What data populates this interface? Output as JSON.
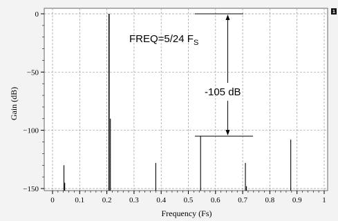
{
  "badge": "1",
  "chart_data": {
    "type": "bar",
    "xlabel": "Frequency (Fs)",
    "ylabel": "Gain (dB)",
    "xlim": [
      0,
      1
    ],
    "ylim": [
      -150,
      0
    ],
    "xticks": [
      0,
      0.1,
      0.2,
      0.3,
      0.4,
      0.5,
      0.6,
      0.7,
      0.8,
      0.9,
      1
    ],
    "xtick_labels": [
      "0",
      "0.1",
      "0.2",
      "0.3",
      "0.4",
      "0.5",
      "0.6",
      "0.7",
      "0.8",
      "0.9",
      "1"
    ],
    "yticks": [
      0,
      -50,
      -100,
      -150
    ],
    "ytick_labels": [
      "0",
      "−50",
      "−100",
      "−150"
    ],
    "grid": true,
    "spurs": [
      {
        "x": 0.042,
        "y": -130
      },
      {
        "x": 0.045,
        "y": -145
      },
      {
        "x": 0.208,
        "y": 0
      },
      {
        "x": 0.213,
        "y": -90
      },
      {
        "x": 0.38,
        "y": -128
      },
      {
        "x": 0.545,
        "y": -105
      },
      {
        "x": 0.71,
        "y": -128
      },
      {
        "x": 0.714,
        "y": -148
      },
      {
        "x": 0.877,
        "y": -108
      }
    ],
    "annotations": {
      "freq_label": "FREQ=5/24 F",
      "freq_sub": "S",
      "range_label": "-105 dB",
      "range_from": 0,
      "range_to": -105,
      "range_x": 0.645
    }
  }
}
